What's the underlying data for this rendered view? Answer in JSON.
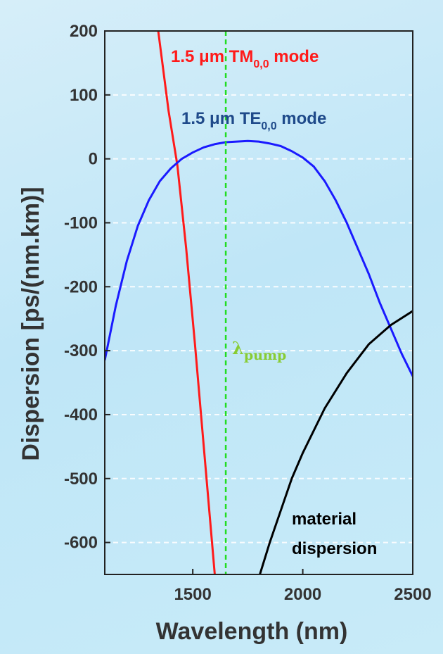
{
  "chart_data": {
    "type": "line",
    "xlabel": "Wavelength (nm)",
    "ylabel": "Dispersion [ps/(nm.km)]",
    "xlim": [
      1100,
      2500
    ],
    "ylim": [
      -650,
      200
    ],
    "xticks": [
      1500,
      2000,
      2500
    ],
    "yticks": [
      200,
      100,
      0,
      -100,
      -200,
      -300,
      -400,
      -500,
      -600
    ],
    "grid": "horizontal dashed",
    "series": [
      {
        "name": "TM_0,0",
        "label": {
          "prefix": "1.5 μm TM",
          "sub": "0,0",
          "suffix": " mode"
        },
        "color": "#ff1a1a",
        "x": [
          1343,
          1390,
          1430,
          1470,
          1510,
          1550,
          1600
        ],
        "y": [
          200,
          75,
          -10,
          -140,
          -290,
          -450,
          -650
        ]
      },
      {
        "name": "TE_0,0",
        "label": {
          "prefix": "1.5 μm TE",
          "sub": "0,0",
          "suffix": " mode"
        },
        "color": "#1a1aff",
        "x": [
          1100,
          1150,
          1200,
          1250,
          1300,
          1350,
          1400,
          1450,
          1500,
          1550,
          1600,
          1650,
          1700,
          1750,
          1800,
          1850,
          1900,
          1950,
          2000,
          2050,
          2100,
          2150,
          2200,
          2250,
          2300,
          2350,
          2400,
          2450,
          2500
        ],
        "y": [
          -315,
          -230,
          -160,
          -105,
          -65,
          -35,
          -15,
          0,
          10,
          18,
          23,
          26,
          27,
          28,
          27,
          24,
          20,
          12,
          2,
          -12,
          -35,
          -65,
          -100,
          -140,
          -180,
          -225,
          -265,
          -305,
          -340
        ]
      },
      {
        "name": "material dispersion",
        "label": {
          "line1": "material",
          "line2": "dispersion"
        },
        "color": "#000000",
        "x": [
          1805,
          1850,
          1900,
          1950,
          2000,
          2100,
          2200,
          2300,
          2400,
          2500
        ],
        "y": [
          -650,
          -600,
          -550,
          -500,
          -460,
          -390,
          -335,
          -290,
          -260,
          -238
        ]
      }
    ],
    "marker": {
      "x": 1650,
      "color": "#22dd22",
      "label": {
        "main": "λ",
        "sub": "pump"
      },
      "label_color": "#88cc33"
    }
  }
}
